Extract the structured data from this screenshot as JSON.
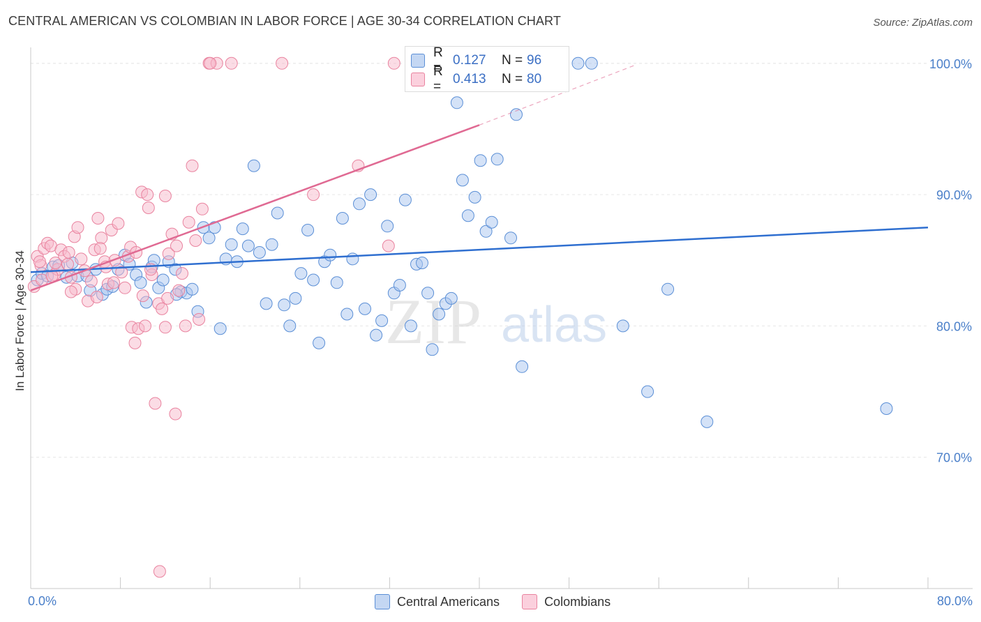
{
  "title": "CENTRAL AMERICAN VS COLOMBIAN IN LABOR FORCE | AGE 30-34 CORRELATION CHART",
  "source": "Source: ZipAtlas.com",
  "watermark": "ZIPatlas",
  "legend": {
    "rows": [
      {
        "r_label": "R =",
        "r_value": "0.127",
        "n_label": "N =",
        "n_value": "96",
        "color": "#a9c5ef",
        "edge": "#5b8fd6"
      },
      {
        "r_label": "R =",
        "r_value": "0.413",
        "n_label": "N =",
        "n_value": "80",
        "color": "#f7b9cb",
        "edge": "#e9839f"
      }
    ],
    "bottom": [
      "Central Americans",
      "Colombians"
    ]
  },
  "chart_data": {
    "type": "scatter",
    "title": "CENTRAL AMERICAN VS COLOMBIAN IN LABOR FORCE | AGE 30-34 CORRELATION CHART",
    "xlabel": "",
    "ylabel": "In Labor Force | Age 30-34",
    "xlim": [
      0,
      80
    ],
    "ylim": [
      60,
      101
    ],
    "x_tick_labels": [
      "0.0%",
      "80.0%"
    ],
    "y_ticks": [
      70,
      80,
      90,
      100
    ],
    "y_tick_labels": [
      "70.0%",
      "80.0%",
      "90.0%",
      "100.0%"
    ],
    "grid": true,
    "series": [
      {
        "name": "Central Americans",
        "color": "#a9c5ef",
        "edge": "#5b8fd6",
        "trend": {
          "x0": 0,
          "y0": 84.1,
          "x1": 80,
          "y1": 87.5,
          "color": "#2f6fd0"
        },
        "points": [
          [
            0.6,
            83.5
          ],
          [
            1.0,
            84.0
          ],
          [
            1.5,
            83.8
          ],
          [
            2.0,
            84.5
          ],
          [
            2.5,
            84.6
          ],
          [
            3.2,
            83.7
          ],
          [
            3.7,
            84.8
          ],
          [
            4.2,
            83.8
          ],
          [
            5.3,
            82.7
          ],
          [
            5.8,
            84.3
          ],
          [
            6.4,
            82.4
          ],
          [
            6.8,
            82.8
          ],
          [
            7.3,
            83.0
          ],
          [
            7.8,
            84.3
          ],
          [
            8.4,
            85.4
          ],
          [
            8.8,
            84.7
          ],
          [
            9.4,
            83.9
          ],
          [
            9.8,
            83.3
          ],
          [
            10.3,
            81.8
          ],
          [
            10.8,
            84.5
          ],
          [
            11.4,
            82.9
          ],
          [
            11.8,
            83.5
          ],
          [
            12.3,
            84.9
          ],
          [
            12.9,
            84.3
          ],
          [
            13.4,
            82.6
          ],
          [
            13.9,
            82.5
          ],
          [
            14.4,
            82.8
          ],
          [
            14.9,
            81.1
          ],
          [
            15.4,
            87.5
          ],
          [
            15.9,
            86.7
          ],
          [
            16.4,
            87.5
          ],
          [
            16.9,
            79.8
          ],
          [
            17.4,
            85.1
          ],
          [
            17.9,
            86.2
          ],
          [
            18.4,
            84.9
          ],
          [
            18.9,
            87.4
          ],
          [
            19.4,
            86.1
          ],
          [
            19.9,
            92.2
          ],
          [
            20.4,
            85.6
          ],
          [
            21.0,
            81.7
          ],
          [
            21.5,
            86.2
          ],
          [
            22.0,
            88.6
          ],
          [
            22.6,
            81.6
          ],
          [
            23.1,
            80.0
          ],
          [
            23.6,
            82.1
          ],
          [
            24.1,
            84.0
          ],
          [
            24.7,
            87.3
          ],
          [
            25.2,
            83.5
          ],
          [
            25.7,
            78.7
          ],
          [
            26.2,
            84.9
          ],
          [
            26.7,
            85.4
          ],
          [
            27.3,
            83.3
          ],
          [
            27.8,
            88.2
          ],
          [
            28.2,
            80.9
          ],
          [
            28.7,
            85.1
          ],
          [
            29.3,
            89.3
          ],
          [
            29.8,
            81.3
          ],
          [
            30.3,
            90.0
          ],
          [
            30.8,
            79.3
          ],
          [
            31.3,
            80.4
          ],
          [
            31.8,
            87.6
          ],
          [
            32.4,
            82.5
          ],
          [
            32.9,
            83.1
          ],
          [
            33.4,
            89.6
          ],
          [
            33.9,
            80.0
          ],
          [
            34.4,
            84.7
          ],
          [
            34.9,
            84.8
          ],
          [
            35.4,
            82.5
          ],
          [
            35.8,
            78.2
          ],
          [
            36.4,
            80.9
          ],
          [
            37.0,
            81.7
          ],
          [
            37.5,
            82.1
          ],
          [
            38.0,
            97.0
          ],
          [
            38.5,
            91.1
          ],
          [
            39.0,
            88.4
          ],
          [
            39.6,
            89.8
          ],
          [
            40.1,
            92.6
          ],
          [
            40.6,
            87.2
          ],
          [
            41.1,
            87.9
          ],
          [
            41.6,
            92.7
          ],
          [
            42.2,
            100.0
          ],
          [
            42.8,
            86.7
          ],
          [
            43.3,
            96.1
          ],
          [
            43.8,
            76.9
          ],
          [
            44.3,
            100.0
          ],
          [
            48.8,
            100.0
          ],
          [
            50.0,
            100.0
          ],
          [
            52.8,
            80.0
          ],
          [
            55.0,
            75.0
          ],
          [
            56.8,
            82.8
          ],
          [
            60.3,
            72.7
          ],
          [
            76.3,
            73.7
          ],
          [
            11.0,
            85.0
          ],
          [
            5.0,
            83.8
          ],
          [
            13.0,
            82.4
          ],
          [
            42.0,
            100.0
          ]
        ]
      },
      {
        "name": "Colombians",
        "color": "#f7b9cb",
        "edge": "#e9839f",
        "trend": {
          "x0": 0,
          "y0": 82.7,
          "x1": 40,
          "y1": 95.3,
          "dash_to_x": 54,
          "dash_to_y": 99.9,
          "color": "#e06a93"
        },
        "points": [
          [
            0.3,
            83.0
          ],
          [
            0.6,
            85.3
          ],
          [
            0.9,
            84.6
          ],
          [
            1.2,
            85.9
          ],
          [
            1.5,
            86.3
          ],
          [
            1.8,
            86.1
          ],
          [
            2.1,
            83.9
          ],
          [
            2.4,
            84.3
          ],
          [
            2.7,
            85.8
          ],
          [
            3.0,
            85.3
          ],
          [
            3.3,
            84.7
          ],
          [
            3.6,
            83.7
          ],
          [
            3.9,
            86.8
          ],
          [
            4.2,
            87.5
          ],
          [
            4.5,
            85.1
          ],
          [
            4.8,
            84.2
          ],
          [
            5.1,
            81.9
          ],
          [
            5.4,
            83.4
          ],
          [
            5.7,
            85.8
          ],
          [
            6.0,
            88.2
          ],
          [
            6.3,
            86.7
          ],
          [
            6.6,
            84.9
          ],
          [
            6.9,
            83.2
          ],
          [
            7.2,
            87.3
          ],
          [
            7.5,
            85.0
          ],
          [
            7.8,
            87.8
          ],
          [
            8.1,
            84.1
          ],
          [
            8.4,
            82.9
          ],
          [
            8.7,
            85.3
          ],
          [
            9.0,
            79.9
          ],
          [
            9.3,
            78.7
          ],
          [
            9.6,
            79.8
          ],
          [
            9.9,
            90.2
          ],
          [
            10.2,
            80.0
          ],
          [
            10.5,
            89.0
          ],
          [
            10.8,
            83.9
          ],
          [
            11.1,
            74.1
          ],
          [
            11.4,
            81.7
          ],
          [
            11.7,
            81.3
          ],
          [
            12.0,
            79.9
          ],
          [
            12.3,
            85.5
          ],
          [
            12.6,
            87.0
          ],
          [
            12.9,
            73.3
          ],
          [
            13.2,
            82.7
          ],
          [
            13.5,
            84.0
          ],
          [
            13.8,
            80.0
          ],
          [
            14.1,
            87.9
          ],
          [
            14.4,
            92.2
          ],
          [
            14.7,
            86.5
          ],
          [
            15.0,
            80.5
          ],
          [
            15.3,
            88.9
          ],
          [
            15.9,
            100.0
          ],
          [
            16.6,
            100.0
          ],
          [
            17.9,
            100.0
          ],
          [
            22.4,
            100.0
          ],
          [
            25.2,
            90.0
          ],
          [
            29.2,
            92.2
          ],
          [
            31.9,
            86.1
          ],
          [
            32.4,
            100.0
          ],
          [
            11.5,
            61.3
          ],
          [
            1.0,
            83.5
          ],
          [
            2.2,
            84.8
          ],
          [
            3.4,
            85.6
          ],
          [
            4.0,
            82.8
          ],
          [
            5.9,
            82.2
          ],
          [
            6.7,
            84.5
          ],
          [
            7.4,
            83.3
          ],
          [
            8.9,
            86.0
          ],
          [
            10.0,
            82.3
          ],
          [
            10.7,
            84.3
          ],
          [
            12.2,
            82.1
          ],
          [
            13.0,
            86.1
          ],
          [
            9.4,
            85.6
          ],
          [
            10.4,
            90.0
          ],
          [
            12.0,
            89.9
          ],
          [
            16.0,
            100.0
          ],
          [
            3.6,
            82.6
          ],
          [
            1.9,
            83.8
          ],
          [
            0.8,
            84.9
          ],
          [
            6.2,
            85.9
          ]
        ]
      }
    ]
  }
}
